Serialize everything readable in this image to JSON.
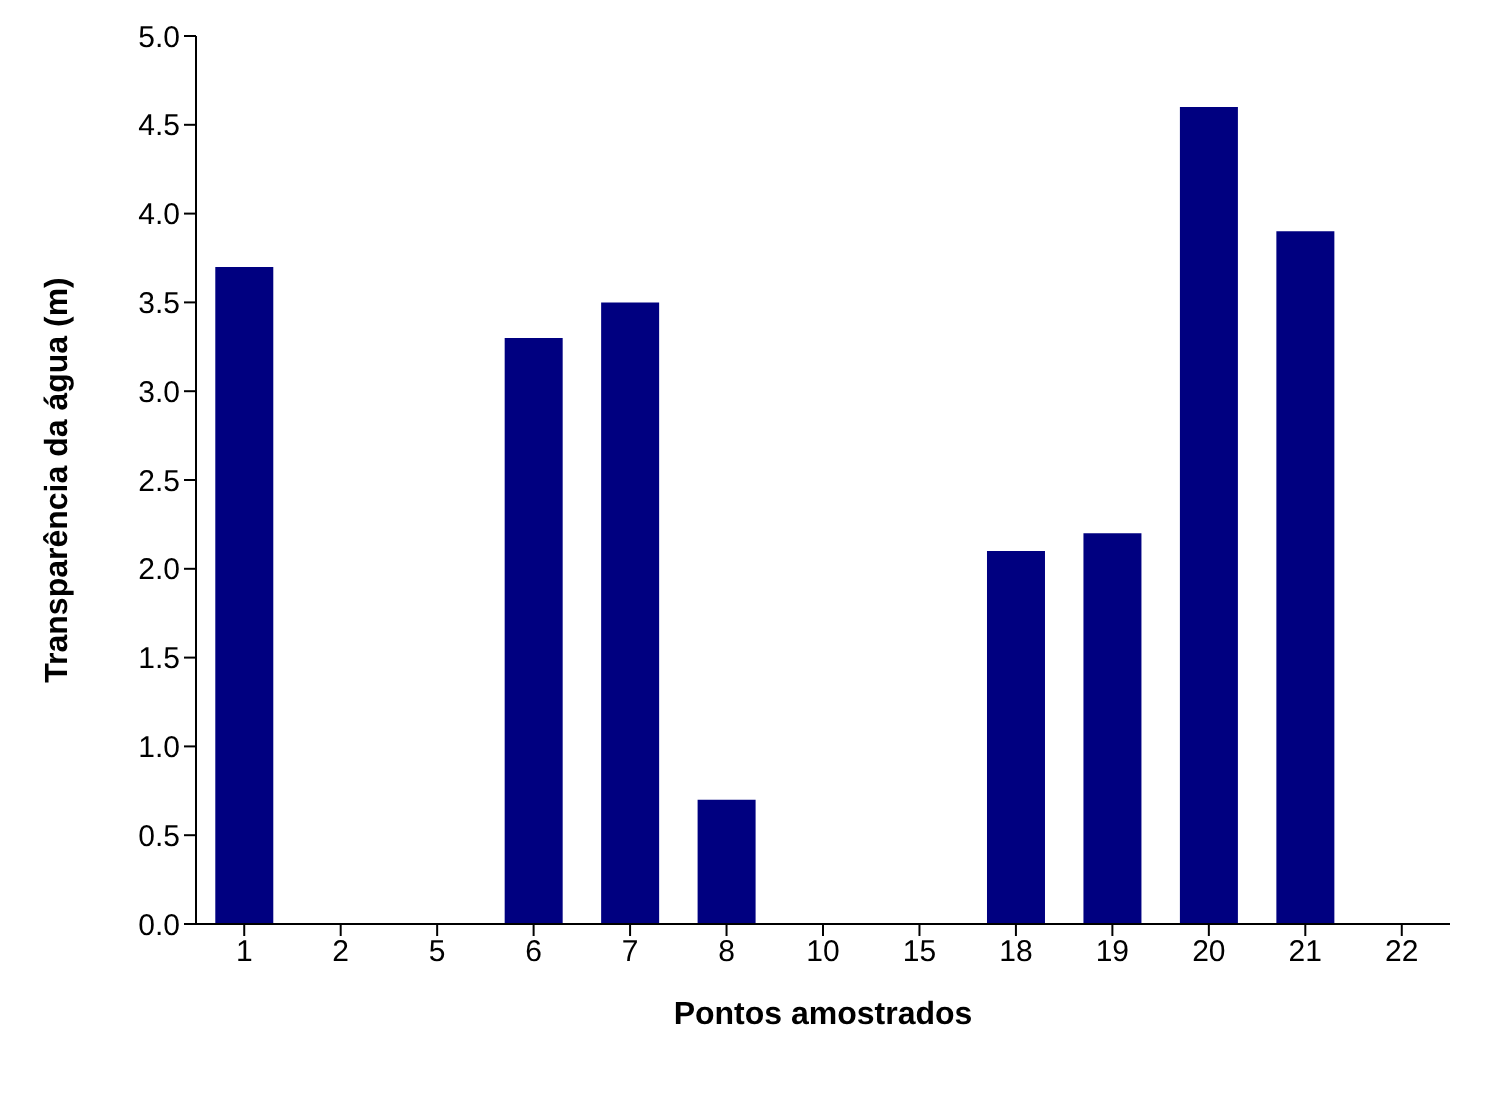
{
  "chart_data": {
    "type": "bar",
    "xlabel": "Pontos amostrados",
    "ylabel": "Transparência da água (m)",
    "categories": [
      "1",
      "2",
      "5",
      "6",
      "7",
      "8",
      "10",
      "15",
      "18",
      "19",
      "20",
      "21",
      "22"
    ],
    "values": [
      3.7,
      null,
      null,
      3.3,
      3.5,
      0.7,
      null,
      null,
      2.1,
      2.2,
      4.6,
      3.9,
      null
    ],
    "color": "#000080",
    "ylim": [
      0,
      5
    ],
    "yticks": [
      {
        "value": 0,
        "label": "0.0"
      },
      {
        "value": 0.5,
        "label": "0.5"
      },
      {
        "value": 1,
        "label": "1.0"
      },
      {
        "value": 1.5,
        "label": "1.5"
      },
      {
        "value": 2,
        "label": "2.0"
      },
      {
        "value": 2.5,
        "label": "2.5"
      },
      {
        "value": 3,
        "label": "3.0"
      },
      {
        "value": 3.5,
        "label": "3.5"
      },
      {
        "value": 4,
        "label": "4.0"
      },
      {
        "value": 4.5,
        "label": "4.5"
      },
      {
        "value": 5,
        "label": "5.0"
      }
    ],
    "grid": false
  }
}
